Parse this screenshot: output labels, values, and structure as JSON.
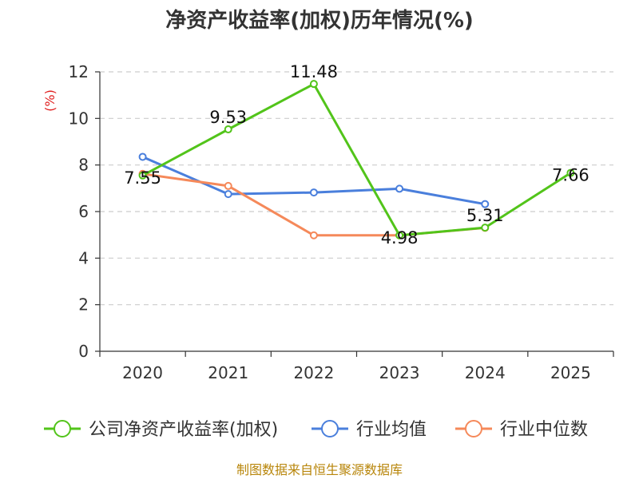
{
  "chart_data": {
    "type": "line",
    "title": "净资产收益率(加权)历年情况(%)",
    "ylabel": "(%)",
    "xlabel": "",
    "categories": [
      "2020",
      "2021",
      "2022",
      "2023",
      "2024",
      "2025"
    ],
    "ylim": [
      0,
      12
    ],
    "yticks": [
      "0",
      "2",
      "4",
      "6",
      "8",
      "10",
      "12"
    ],
    "grid": true,
    "legend_position": "bottom",
    "series": [
      {
        "name": "公司净资产收益率(加权)",
        "color": "#52c41a",
        "values": [
          7.55,
          9.53,
          11.48,
          4.98,
          5.31,
          7.66
        ],
        "labels": [
          "7.55",
          "9.53",
          "11.48",
          "4.98",
          "5.31",
          "7.66"
        ]
      },
      {
        "name": "行业均值",
        "color": "#4a7fdc",
        "values": [
          8.35,
          6.75,
          6.82,
          6.98,
          6.32,
          null
        ]
      },
      {
        "name": "行业中位数",
        "color": "#f5895a",
        "values": [
          7.62,
          7.1,
          4.98,
          4.98,
          5.3,
          null
        ]
      }
    ],
    "source": "制图数据来自恒生聚源数据库"
  }
}
